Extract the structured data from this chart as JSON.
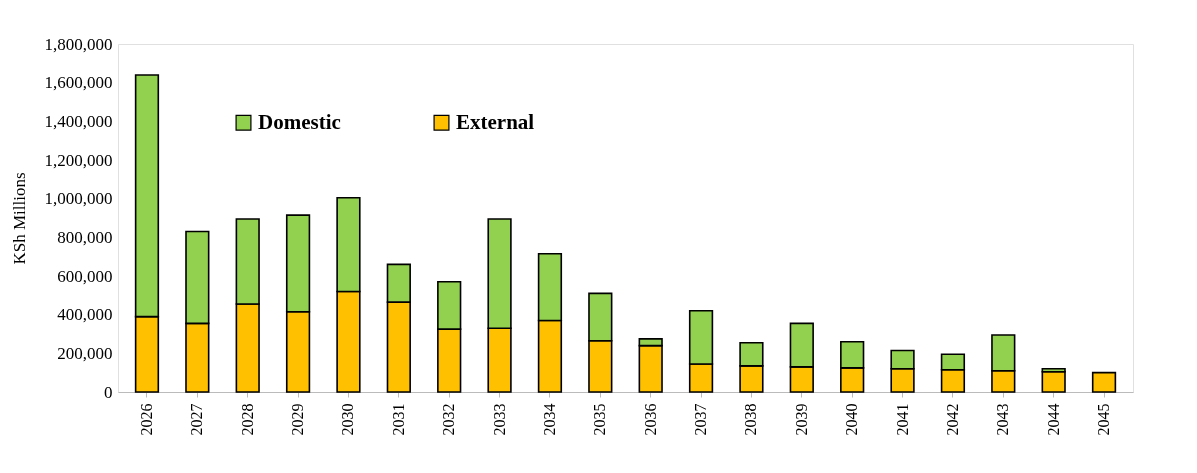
{
  "chart_data": {
    "type": "bar",
    "stacked": true,
    "ylabel": "KSh Millions",
    "categories": [
      "2026",
      "2027",
      "2028",
      "2029",
      "2030",
      "2031",
      "2032",
      "2033",
      "2034",
      "2035",
      "2036",
      "2037",
      "2038",
      "2039",
      "2040",
      "2041",
      "2042",
      "2043",
      "2044",
      "2045"
    ],
    "series": [
      {
        "name": "External",
        "color": "#ffc000",
        "values": [
          390000,
          355000,
          455000,
          415000,
          520000,
          465000,
          325000,
          330000,
          370000,
          265000,
          240000,
          145000,
          135000,
          130000,
          125000,
          120000,
          115000,
          110000,
          105000,
          100000
        ]
      },
      {
        "name": "Domestic",
        "color": "#92d050",
        "values": [
          1250000,
          475000,
          440000,
          500000,
          485000,
          195000,
          245000,
          565000,
          345000,
          245000,
          35000,
          275000,
          120000,
          225000,
          135000,
          95000,
          80000,
          185000,
          15000,
          null
        ]
      }
    ],
    "ylim": [
      0,
      1800000
    ],
    "yticks": [
      0,
      {
        "value": 200000,
        "label": "200,000"
      },
      {
        "value": 400000,
        "label": "400,000"
      },
      {
        "value": 600000,
        "label": "600,000"
      },
      {
        "value": 800000,
        "label": "800,000"
      },
      {
        "value": 1000000,
        "label": "1,000,000"
      },
      {
        "value": 1200000,
        "label": "1,200,000"
      },
      {
        "value": 1400000,
        "label": "1,400,000"
      },
      {
        "value": 1600000,
        "label": "1,600,000"
      },
      {
        "value": 1800000,
        "label": "1,800,000"
      }
    ],
    "grid": false,
    "legend": "top"
  }
}
